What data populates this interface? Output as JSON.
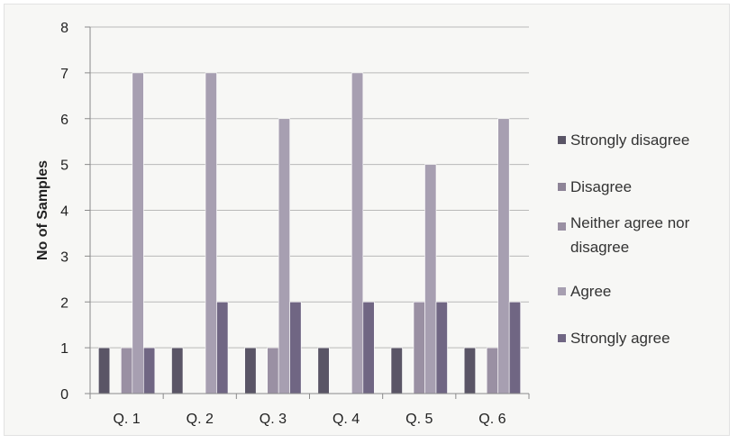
{
  "chart_data": {
    "type": "bar",
    "title": "",
    "xlabel": "",
    "ylabel": "No of Samples",
    "ylim": [
      0,
      8
    ],
    "yticks": [
      "0",
      "1",
      "2",
      "3",
      "4",
      "5",
      "6",
      "7",
      "8"
    ],
    "grid": true,
    "legend_position": "right",
    "categories": [
      "Q. 1",
      "Q. 2",
      "Q. 3",
      "Q. 4",
      "Q. 5",
      "Q. 6"
    ],
    "series": [
      {
        "name": "Strongly disagree",
        "color": "#5a5566",
        "values": [
          1,
          1,
          1,
          1,
          1,
          1
        ]
      },
      {
        "name": "Disagree",
        "color": "#8e8497",
        "values": [
          0,
          0,
          0,
          0,
          0,
          0
        ]
      },
      {
        "name": "Neither agree nor disagree",
        "color": "#9a90a3",
        "values": [
          1,
          0,
          1,
          0,
          2,
          1
        ]
      },
      {
        "name": "Agree",
        "color": "#a79fb1",
        "values": [
          7,
          7,
          6,
          7,
          5,
          6
        ]
      },
      {
        "name": "Strongly agree",
        "color": "#706683",
        "values": [
          1,
          2,
          2,
          2,
          2,
          2
        ]
      }
    ]
  }
}
